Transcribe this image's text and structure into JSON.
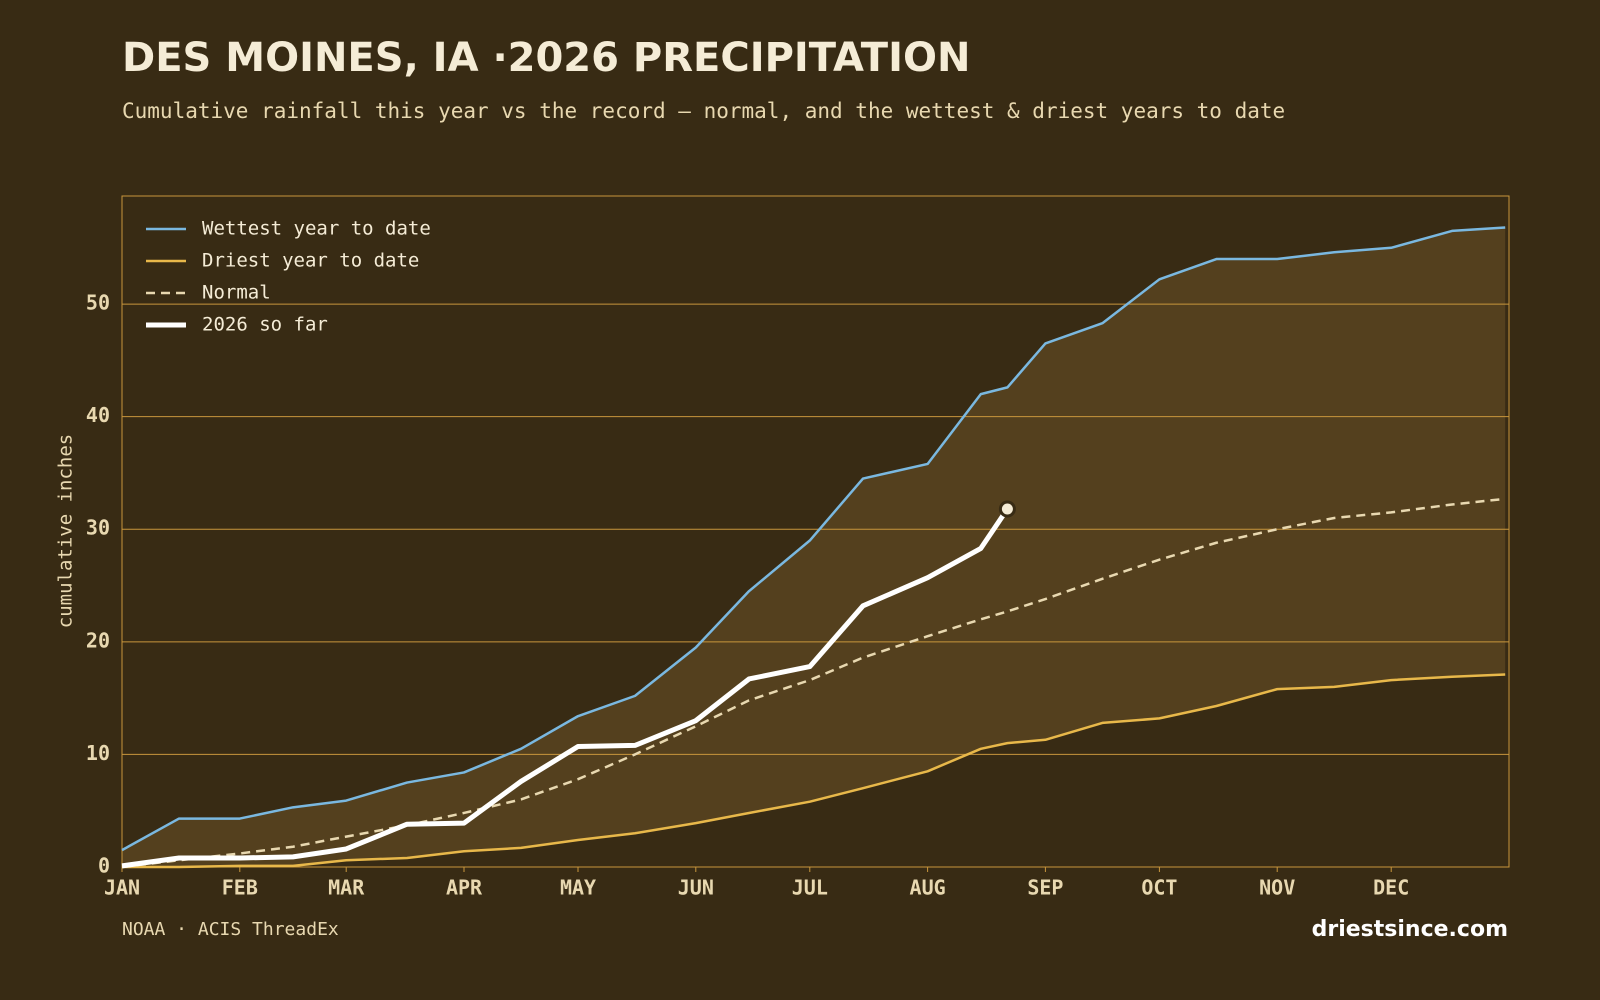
{
  "chart_data": {
    "type": "line",
    "title": "DES MOINES, IA ·2026 PRECIPITATION",
    "subtitle": "Cumulative rainfall this year vs the record — normal, and the wettest & driest years to date",
    "ylabel": "cumulative inches",
    "source": "NOAA · ACIS ThreadEx",
    "site": "driestsince.com",
    "x": [
      0,
      15,
      31,
      45,
      59,
      75,
      90,
      105,
      120,
      135,
      151,
      165,
      181,
      195,
      212,
      226,
      233,
      243,
      258,
      273,
      288,
      304,
      319,
      334,
      350,
      364
    ],
    "xlim": [
      0,
      365
    ],
    "xticks": [
      {
        "value": 0,
        "label": "JAN"
      },
      {
        "value": 31,
        "label": "FEB"
      },
      {
        "value": 59,
        "label": "MAR"
      },
      {
        "value": 90,
        "label": "APR"
      },
      {
        "value": 120,
        "label": "MAY"
      },
      {
        "value": 151,
        "label": "JUN"
      },
      {
        "value": 181,
        "label": "JUL"
      },
      {
        "value": 212,
        "label": "AUG"
      },
      {
        "value": 243,
        "label": "SEP"
      },
      {
        "value": 273,
        "label": "OCT"
      },
      {
        "value": 304,
        "label": "NOV"
      },
      {
        "value": 334,
        "label": "DEC"
      }
    ],
    "ylim": [
      0,
      59.6
    ],
    "yticks": [
      0,
      10,
      20,
      30,
      40,
      50
    ],
    "grid": true,
    "legend": "top-left",
    "band_color": "#54401e",
    "series": [
      {
        "name": "Wettest year to date",
        "color": "#7ab8e0",
        "style": "solid",
        "values": [
          1.5,
          4.3,
          4.3,
          5.3,
          5.9,
          7.5,
          8.4,
          10.5,
          13.4,
          15.2,
          19.5,
          24.5,
          29.0,
          34.5,
          35.8,
          42.0,
          42.6,
          46.5,
          48.3,
          52.2,
          54.0,
          54.0,
          54.6,
          55.0,
          56.5,
          56.8
        ]
      },
      {
        "name": "Driest year to date",
        "color": "#e8b84a",
        "style": "solid",
        "values": [
          0,
          0,
          0.1,
          0.1,
          0.6,
          0.8,
          1.4,
          1.7,
          2.4,
          3.0,
          3.9,
          4.8,
          5.8,
          7.0,
          8.5,
          10.5,
          11.0,
          11.3,
          12.8,
          13.2,
          14.3,
          15.8,
          16.0,
          16.6,
          16.9,
          17.1
        ]
      },
      {
        "name": "Normal",
        "color": "#e8d8b0",
        "style": "dashed",
        "values": [
          0,
          0.6,
          1.2,
          1.8,
          2.7,
          3.7,
          4.8,
          6.0,
          7.8,
          10.0,
          12.5,
          14.8,
          16.6,
          18.6,
          20.5,
          22.0,
          22.7,
          23.8,
          25.6,
          27.3,
          28.8,
          30.0,
          31.0,
          31.5,
          32.2,
          32.7
        ]
      },
      {
        "name": "2026 so far",
        "color": "#ffffff",
        "style": "thick",
        "values": [
          0.1,
          0.8,
          0.8,
          0.9,
          1.6,
          3.8,
          3.9,
          7.6,
          10.7,
          10.8,
          13.0,
          16.7,
          17.8,
          23.2,
          25.7,
          28.3,
          31.8,
          null,
          null,
          null,
          null,
          null,
          null,
          null,
          null,
          null
        ]
      }
    ]
  }
}
